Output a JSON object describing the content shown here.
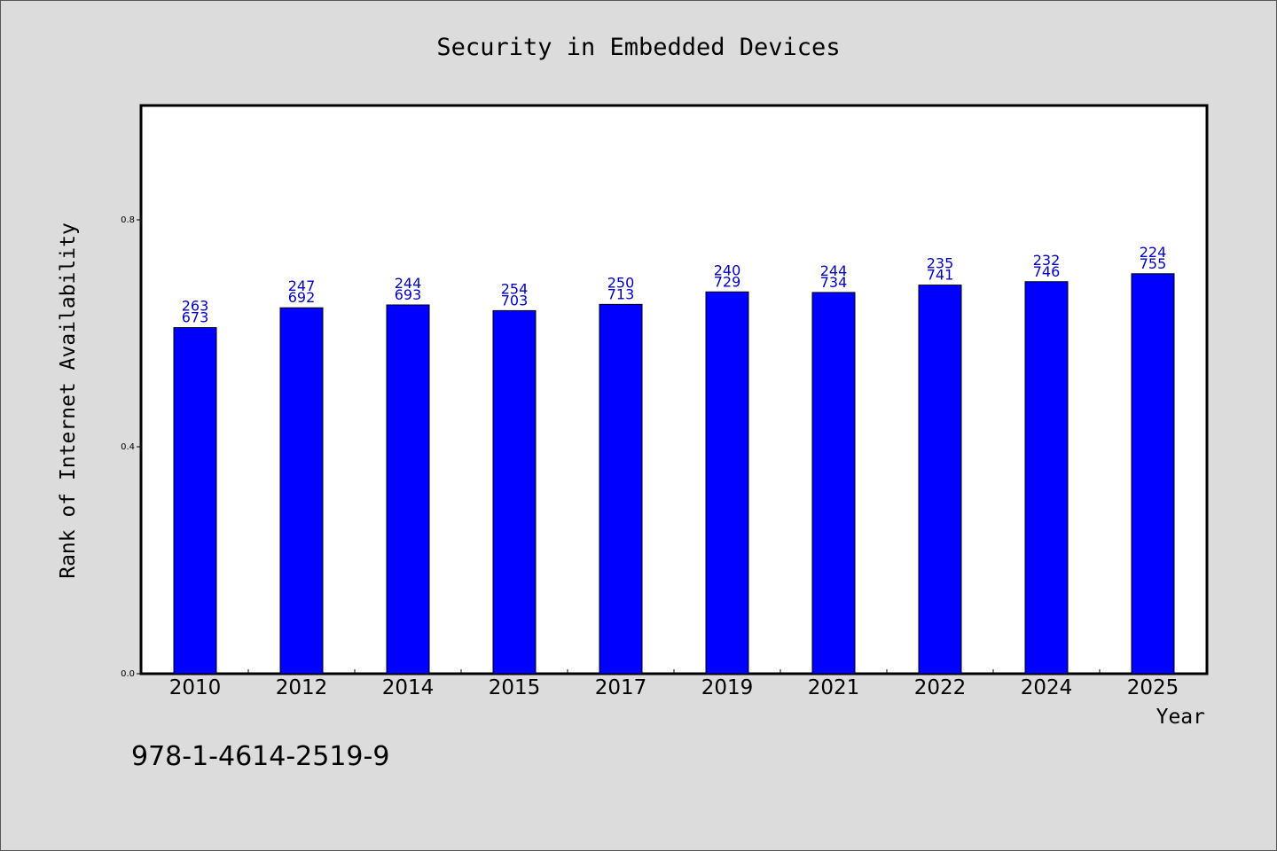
{
  "chart_data": {
    "type": "bar",
    "title": "Security in Embedded Devices",
    "xlabel": "Year",
    "ylabel": "Rank of Internet Availability",
    "categories": [
      "2010",
      "2012",
      "2014",
      "2015",
      "2017",
      "2019",
      "2021",
      "2022",
      "2024",
      "2025"
    ],
    "values": [
      0.61,
      0.645,
      0.65,
      0.64,
      0.651,
      0.673,
      0.672,
      0.685,
      0.691,
      0.705
    ],
    "labels_top": [
      "263",
      "247",
      "244",
      "254",
      "250",
      "240",
      "244",
      "235",
      "232",
      "224"
    ],
    "labels_bottom": [
      "673",
      "692",
      "693",
      "703",
      "713",
      "729",
      "734",
      "741",
      "746",
      "755"
    ],
    "ylim": [
      0,
      1.0
    ],
    "yticks": [
      "0.0",
      "0.4",
      "0.8"
    ],
    "ytick_values": [
      0,
      0.4,
      0.8
    ],
    "bar_color": "#0000ff",
    "label_color": "#0000cc",
    "grid": false
  },
  "footer": {
    "isbn": "978-1-4614-2519-9"
  }
}
